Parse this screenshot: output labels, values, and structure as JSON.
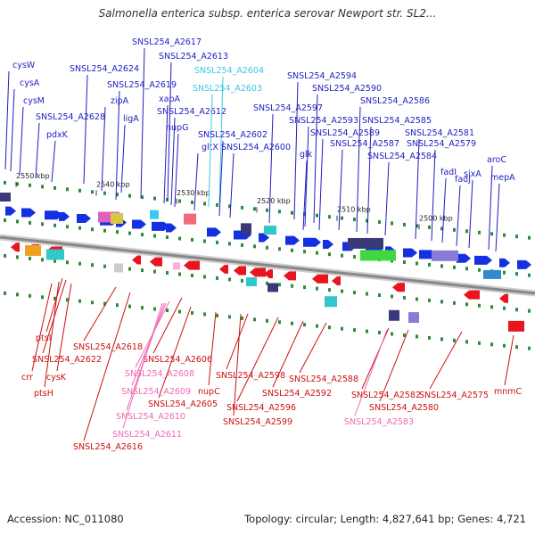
{
  "title": "Salmonella enterica subsp. enterica serovar Newport str. SL2...",
  "footer": {
    "accession": "Accession: NC_011080",
    "topology": "Topology: circular; Length: 4,827,641 bp; Genes: 4,721"
  },
  "colors": {
    "forward_label": "#1f1fbf",
    "reverse_label": "#cc1111",
    "cyan_label": "#3cc8e8",
    "pink_label": "#f06ab4",
    "forward_arrow": "#1530e0",
    "reverse_arrow": "#e8141e",
    "backbone": "#888888"
  },
  "ruler": [
    {
      "label": "2550 kbp"
    },
    {
      "label": "2540 kbp"
    },
    {
      "label": "2530 kbp"
    },
    {
      "label": "2520 kbp"
    },
    {
      "label": "2510 kbp"
    },
    {
      "label": "2500 kbp"
    }
  ],
  "top_labels": [
    {
      "text": "cysW",
      "style": "forward"
    },
    {
      "text": "cysA",
      "style": "forward"
    },
    {
      "text": "cysM",
      "style": "forward"
    },
    {
      "text": "SNSL254_A2628",
      "style": "forward"
    },
    {
      "text": "pdxK",
      "style": "forward"
    },
    {
      "text": "SNSL254_A2624",
      "style": "forward"
    },
    {
      "text": "zipA",
      "style": "forward"
    },
    {
      "text": "ligA",
      "style": "forward"
    },
    {
      "text": "SNSL254_A2619",
      "style": "forward"
    },
    {
      "text": "SNSL254_A2617",
      "style": "forward"
    },
    {
      "text": "SNSL254_A2613",
      "style": "forward"
    },
    {
      "text": "xapA",
      "style": "forward"
    },
    {
      "text": "SNSL254_A2612",
      "style": "forward"
    },
    {
      "text": "nupG",
      "style": "forward"
    },
    {
      "text": "gltX",
      "style": "forward"
    },
    {
      "text": "SNSL254_A2604",
      "style": "cyan"
    },
    {
      "text": "SNSL254_A2603",
      "style": "cyan"
    },
    {
      "text": "SNSL254_A2602",
      "style": "forward"
    },
    {
      "text": "SNSL254_A2600",
      "style": "forward"
    },
    {
      "text": "SNSL254_A2597",
      "style": "forward"
    },
    {
      "text": "SNSL254_A2594",
      "style": "forward"
    },
    {
      "text": "SNSL254_A2590",
      "style": "forward"
    },
    {
      "text": "SNSL254_A2593",
      "style": "forward"
    },
    {
      "text": "SNSL254_A2589",
      "style": "forward"
    },
    {
      "text": "glk",
      "style": "forward"
    },
    {
      "text": "SNSL254_A2587",
      "style": "forward"
    },
    {
      "text": "SNSL254_A2586",
      "style": "forward"
    },
    {
      "text": "SNSL254_A2585",
      "style": "forward"
    },
    {
      "text": "SNSL254_A2584",
      "style": "forward"
    },
    {
      "text": "SNSL254_A2581",
      "style": "forward"
    },
    {
      "text": "SNSL254_A2579",
      "style": "forward"
    },
    {
      "text": "fadI",
      "style": "forward"
    },
    {
      "text": "fadJ",
      "style": "forward"
    },
    {
      "text": "sixA",
      "style": "forward"
    },
    {
      "text": "aroC",
      "style": "forward"
    },
    {
      "text": "mepA",
      "style": "forward"
    }
  ],
  "bottom_labels": [
    {
      "text": "ptsI",
      "style": "reverse"
    },
    {
      "text": "crr",
      "style": "reverse"
    },
    {
      "text": "SNSL254_A2622",
      "style": "reverse"
    },
    {
      "text": "cysK",
      "style": "reverse"
    },
    {
      "text": "ptsH",
      "style": "reverse"
    },
    {
      "text": "SNSL254_A2618",
      "style": "reverse"
    },
    {
      "text": "SNSL254_A2616",
      "style": "reverse"
    },
    {
      "text": "SNSL254_A2606",
      "style": "reverse"
    },
    {
      "text": "SNSL254_A2608",
      "style": "pink"
    },
    {
      "text": "SNSL254_A2609",
      "style": "pink"
    },
    {
      "text": "SNSL254_A2610",
      "style": "pink"
    },
    {
      "text": "SNSL254_A2611",
      "style": "pink"
    },
    {
      "text": "SNSL254_A2605",
      "style": "reverse"
    },
    {
      "text": "nupC",
      "style": "reverse"
    },
    {
      "text": "SNSL254_A2599",
      "style": "reverse"
    },
    {
      "text": "SNSL254_A2598",
      "style": "reverse"
    },
    {
      "text": "SNSL254_A2596",
      "style": "reverse"
    },
    {
      "text": "SNSL254_A2592",
      "style": "reverse"
    },
    {
      "text": "SNSL254_A2588",
      "style": "reverse"
    },
    {
      "text": "SNSL254_A2582",
      "style": "reverse"
    },
    {
      "text": "SNSL254_A2580",
      "style": "reverse"
    },
    {
      "text": "SNSL254_A2583",
      "style": "pink"
    },
    {
      "text": "SNSL254_A2575",
      "style": "reverse"
    },
    {
      "text": "mnmC",
      "style": "reverse"
    }
  ]
}
